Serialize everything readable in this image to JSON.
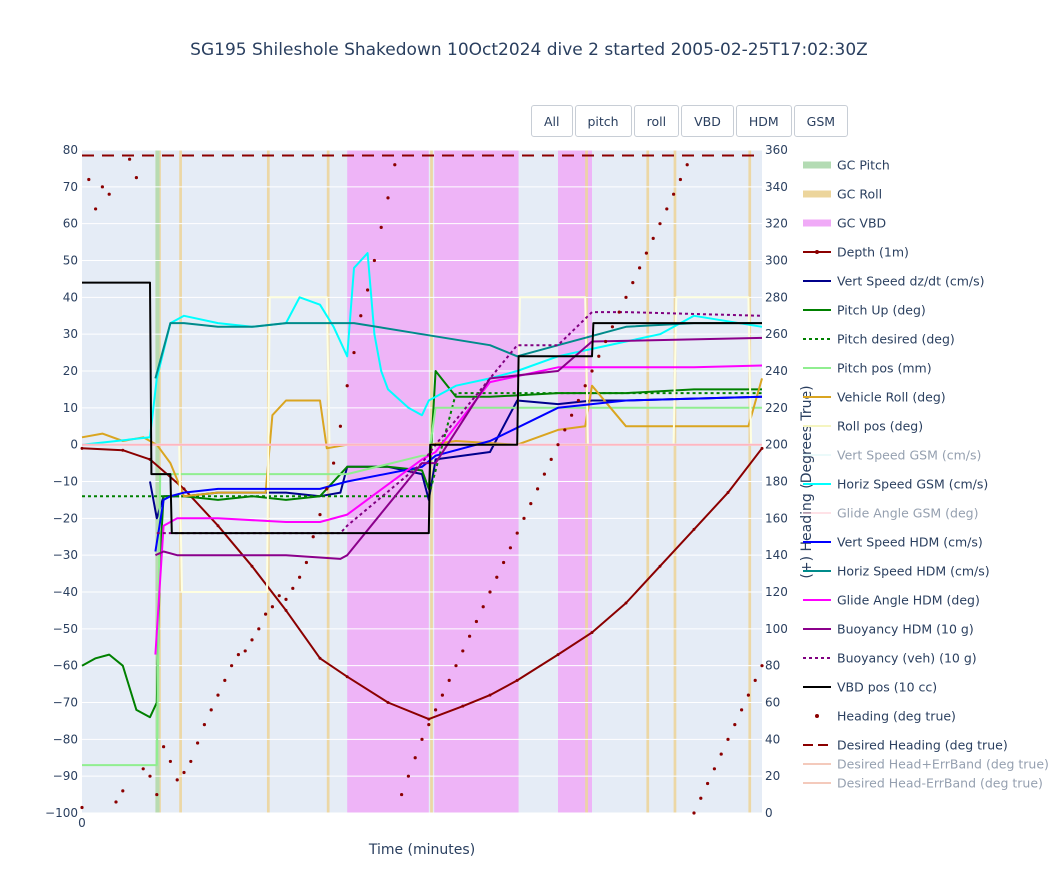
{
  "chart_data": {
    "type": "line",
    "title": "SG195 Shileshole Shakedown 10Oct2024 dive 2 started 2005-02-25T17:02:30Z",
    "xlabel": "Time (minutes)",
    "ylabel": "",
    "y2label": "(+) Heading (Degrees True)",
    "xlim": [
      0,
      1
    ],
    "ylim": [
      -100,
      80
    ],
    "y2lim": [
      0,
      360
    ],
    "x_ticks": [
      "0"
    ],
    "y_ticks": [
      "80",
      "70",
      "60",
      "50",
      "40",
      "30",
      "20",
      "10",
      "0",
      "−10",
      "−20",
      "−30",
      "−40",
      "−50",
      "−60",
      "−70",
      "−80",
      "−90",
      "−100"
    ],
    "y2_ticks": [
      "360",
      "340",
      "320",
      "300",
      "280",
      "260",
      "240",
      "220",
      "200",
      "180",
      "160",
      "140",
      "120",
      "100",
      "80",
      "60",
      "40",
      "20",
      "0"
    ],
    "grid": true,
    "legend_position": "right",
    "bands": {
      "gc_pitch": [
        [
          0.108,
          0.114
        ]
      ],
      "gc_roll": [
        [
          0.108,
          0.116
        ],
        [
          0.143,
          0.147
        ],
        [
          0.272,
          0.276
        ],
        [
          0.36,
          0.364
        ],
        [
          0.512,
          0.516
        ],
        [
          0.74,
          0.744
        ],
        [
          0.83,
          0.834
        ],
        [
          0.87,
          0.874
        ],
        [
          0.98,
          0.984
        ]
      ],
      "gc_vbd": [
        [
          0.39,
          0.51
        ],
        [
          0.518,
          0.642
        ],
        [
          0.7,
          0.75
        ]
      ]
    },
    "series": [
      {
        "name": "Depth (1m)",
        "color": "#8b0000",
        "axis": "y",
        "x": [
          0,
          0.06,
          0.1,
          0.15,
          0.2,
          0.25,
          0.3,
          0.35,
          0.39,
          0.45,
          0.51,
          0.56,
          0.6,
          0.64,
          0.7,
          0.75,
          0.8,
          0.85,
          0.9,
          0.95,
          1.0
        ],
        "values": [
          -1,
          -1.5,
          -4,
          -12,
          -22,
          -33,
          -45,
          -58,
          -63,
          -70,
          -74.5,
          -71,
          -68,
          -64,
          -57,
          -51,
          -43,
          -33,
          -23,
          -13,
          -1
        ]
      },
      {
        "name": "Vert Speed dz/dt (cm/s)",
        "color": "#00008b",
        "axis": "y",
        "x": [
          0.1,
          0.11,
          0.12,
          0.15,
          0.2,
          0.25,
          0.3,
          0.35,
          0.38,
          0.39,
          0.45,
          0.5,
          0.51,
          0.52,
          0.6,
          0.64,
          0.7,
          0.75,
          0.8,
          0.9,
          1.0
        ],
        "values": [
          -10,
          -20,
          -14,
          -14,
          -13,
          -13,
          -13,
          -14,
          -13,
          -6,
          -6,
          -8,
          -15,
          -4,
          -2,
          12,
          11,
          12,
          12,
          12.5,
          13
        ]
      },
      {
        "name": "Pitch Up (deg)",
        "color": "#008000",
        "axis": "y",
        "x": [
          0,
          0.02,
          0.04,
          0.06,
          0.08,
          0.1,
          0.11,
          0.115,
          0.12,
          0.15,
          0.2,
          0.25,
          0.3,
          0.35,
          0.39,
          0.45,
          0.5,
          0.51,
          0.52,
          0.55,
          0.6,
          0.7,
          0.8,
          0.9,
          1.0
        ],
        "values": [
          -60,
          -58,
          -57,
          -60,
          -72,
          -74,
          -70,
          -30,
          -14,
          -14,
          -15,
          -14,
          -15,
          -14,
          -6,
          -6,
          -7,
          -12,
          20,
          13,
          13,
          14,
          14,
          15,
          15
        ]
      },
      {
        "name": "Pitch desired (deg)",
        "color": "#008000",
        "dash": "3,3",
        "axis": "y",
        "x": [
          0,
          0.5,
          0.51,
          0.55,
          0.64,
          0.66,
          1.0
        ],
        "values": [
          -14,
          -14,
          -14,
          14,
          14,
          14,
          14
        ]
      },
      {
        "name": "Pitch pos (mm)",
        "color": "#90ee90",
        "axis": "y",
        "x": [
          0,
          0.11,
          0.115,
          0.14,
          0.39,
          0.5,
          0.51,
          0.52,
          0.64,
          0.66,
          1.0
        ],
        "values": [
          -87,
          -87,
          -8,
          -8,
          -8,
          -3,
          -3,
          10,
          10,
          10,
          10
        ]
      },
      {
        "name": "Vehicle Roll (deg)",
        "color": "#daa520",
        "axis": "y",
        "x": [
          0,
          0.03,
          0.06,
          0.09,
          0.11,
          0.13,
          0.15,
          0.2,
          0.27,
          0.28,
          0.3,
          0.35,
          0.36,
          0.39,
          0.45,
          0.51,
          0.55,
          0.64,
          0.7,
          0.74,
          0.75,
          0.8,
          0.86,
          0.88,
          0.98,
          1.0
        ],
        "values": [
          2,
          3,
          1,
          2,
          0,
          -5,
          -14,
          -13,
          -13,
          8,
          12,
          12,
          -1,
          0,
          0,
          0,
          1,
          0,
          4,
          5,
          16,
          5,
          5,
          5,
          5,
          18
        ]
      },
      {
        "name": "Roll pos (deg)",
        "color": "#ffffe0",
        "axis": "y",
        "x": [
          0,
          0.143,
          0.147,
          0.272,
          0.276,
          0.36,
          0.364,
          0.512,
          0.516,
          0.64,
          0.644,
          0.7,
          0.74,
          0.744,
          0.87,
          0.874,
          0.98,
          0.984,
          1.0
        ],
        "values": [
          0,
          0,
          -40,
          -40,
          40,
          40,
          0,
          0,
          0,
          0,
          40,
          40,
          40,
          0,
          0,
          40,
          40,
          0,
          0
        ]
      },
      {
        "name": "Horiz Speed GSM (cm/s)",
        "color": "#00ffff",
        "axis": "y",
        "x": [
          0,
          0.1,
          0.11,
          0.13,
          0.15,
          0.2,
          0.25,
          0.3,
          0.32,
          0.35,
          0.37,
          0.39,
          0.4,
          0.42,
          0.43,
          0.44,
          0.45,
          0.48,
          0.5,
          0.51,
          0.55,
          0.6,
          0.64,
          0.7,
          0.75,
          0.8,
          0.85,
          0.9,
          1.0
        ],
        "values": [
          0,
          2,
          18,
          33,
          35,
          33,
          32,
          33,
          40,
          38,
          32,
          24,
          48,
          52,
          30,
          20,
          15,
          10,
          8,
          12,
          16,
          18,
          20,
          24,
          26,
          28,
          30,
          35,
          32
        ]
      },
      {
        "name": "Vert Speed GSM (cm/s)",
        "color": "#e0ffff",
        "axis": "y",
        "x": [
          0,
          1
        ],
        "values": [
          0,
          0
        ]
      },
      {
        "name": "Glide Angle GSM (deg)",
        "color": "#ffb6c1",
        "axis": "y",
        "x": [
          0,
          1
        ],
        "values": [
          0,
          0
        ]
      },
      {
        "name": "Vert Speed HDM (cm/s)",
        "color": "#0000ff",
        "axis": "y",
        "x": [
          0.108,
          0.12,
          0.13,
          0.15,
          0.2,
          0.35,
          0.39,
          0.5,
          0.52,
          0.6,
          0.7,
          0.75,
          0.8,
          1.0
        ],
        "values": [
          -29,
          -15,
          -14,
          -13,
          -12,
          -12,
          -10,
          -6,
          -3,
          1,
          10,
          11,
          12,
          13
        ]
      },
      {
        "name": "Horiz Speed HDM (cm/s)",
        "color": "#008b8b",
        "axis": "y",
        "x": [
          0.108,
          0.13,
          0.15,
          0.2,
          0.25,
          0.3,
          0.35,
          0.4,
          0.5,
          0.6,
          0.64,
          0.7,
          0.8,
          0.9,
          1.0
        ],
        "values": [
          18,
          33,
          33,
          32,
          32,
          33,
          33,
          33,
          30,
          27,
          24,
          27,
          32,
          33,
          33
        ]
      },
      {
        "name": "Glide Angle HDM (deg)",
        "color": "#ff00ff",
        "axis": "y",
        "x": [
          0.108,
          0.12,
          0.14,
          0.2,
          0.3,
          0.35,
          0.39,
          0.5,
          0.52,
          0.6,
          0.7,
          0.8,
          0.9,
          1.0
        ],
        "values": [
          -57,
          -22,
          -20,
          -20,
          -21,
          -21,
          -19,
          -4,
          -2,
          17,
          21,
          21,
          21,
          21.5
        ]
      },
      {
        "name": "Buoyancy HDM (10 g)",
        "color": "#8b008b",
        "axis": "y",
        "x": [
          0.108,
          0.12,
          0.14,
          0.2,
          0.3,
          0.38,
          0.39,
          0.5,
          0.52,
          0.6,
          0.7,
          0.75,
          1.0
        ],
        "values": [
          -30,
          -29,
          -30,
          -30,
          -30,
          -31,
          -30,
          -5,
          -5,
          18,
          20,
          28,
          29
        ]
      },
      {
        "name": "Buoyancy (veh) (10 g)",
        "color": "#800080",
        "dash": "3,3",
        "axis": "y",
        "x": [
          0.11,
          0.13,
          0.2,
          0.3,
          0.38,
          0.39,
          0.5,
          0.52,
          0.64,
          0.7,
          0.75,
          0.8,
          1.0
        ],
        "values": [
          -24,
          -24,
          -24,
          -24,
          -24,
          -22,
          -5,
          0,
          27,
          27,
          36,
          36,
          35
        ]
      },
      {
        "name": "VBD pos (10 cc)",
        "color": "#000000",
        "axis": "y",
        "x": [
          0,
          0.1,
          0.102,
          0.13,
          0.132,
          0.51,
          0.512,
          0.64,
          0.642,
          0.75,
          0.752,
          1.0
        ],
        "values": [
          44,
          44,
          -8,
          -8,
          -24,
          -24,
          0,
          0,
          24,
          24,
          33,
          33
        ]
      },
      {
        "name": "Heading (deg true)",
        "color": "#8b0000",
        "marker": "dot",
        "axis": "y2",
        "x": [
          0,
          0.01,
          0.02,
          0.03,
          0.04,
          0.05,
          0.06,
          0.07,
          0.08,
          0.09,
          0.1,
          0.11,
          0.12,
          0.13,
          0.14,
          0.15,
          0.16,
          0.17,
          0.18,
          0.19,
          0.2,
          0.21,
          0.22,
          0.23,
          0.24,
          0.25,
          0.26,
          0.27,
          0.28,
          0.29,
          0.3,
          0.31,
          0.32,
          0.33,
          0.34,
          0.35,
          0.36,
          0.37,
          0.38,
          0.39,
          0.4,
          0.41,
          0.42,
          0.43,
          0.44,
          0.45,
          0.46,
          0.47,
          0.48,
          0.49,
          0.5,
          0.51,
          0.52,
          0.53,
          0.54,
          0.55,
          0.56,
          0.57,
          0.58,
          0.59,
          0.6,
          0.61,
          0.62,
          0.63,
          0.64,
          0.65,
          0.66,
          0.67,
          0.68,
          0.69,
          0.7,
          0.71,
          0.72,
          0.73,
          0.74,
          0.75,
          0.76,
          0.77,
          0.78,
          0.79,
          0.8,
          0.81,
          0.82,
          0.83,
          0.84,
          0.85,
          0.86,
          0.87,
          0.88,
          0.89,
          0.9,
          0.91,
          0.92,
          0.93,
          0.94,
          0.95,
          0.96,
          0.97,
          0.98,
          0.99,
          1.0
        ],
        "values": [
          3,
          344,
          328,
          340,
          336,
          6,
          12,
          355,
          345,
          24,
          20,
          10,
          36,
          28,
          18,
          22,
          28,
          38,
          48,
          56,
          64,
          72,
          80,
          86,
          88,
          94,
          100,
          108,
          112,
          118,
          116,
          122,
          128,
          136,
          150,
          162,
          176,
          190,
          210,
          232,
          250,
          270,
          284,
          300,
          318,
          334,
          352,
          10,
          20,
          30,
          40,
          48,
          56,
          64,
          72,
          80,
          88,
          96,
          104,
          112,
          120,
          128,
          136,
          144,
          152,
          160,
          168,
          176,
          184,
          192,
          200,
          208,
          216,
          224,
          232,
          240,
          248,
          256,
          264,
          272,
          280,
          288,
          296,
          304,
          312,
          320,
          328,
          336,
          344,
          352,
          0,
          8,
          16,
          24,
          32,
          40,
          48,
          56,
          64,
          72,
          80
        ]
      },
      {
        "name": "Desired Heading (deg true)",
        "color": "#8b0000",
        "dash": "12,8",
        "axis": "y2",
        "x": [
          0,
          1
        ],
        "values": [
          357,
          357
        ]
      },
      {
        "name": "Desired Head+ErrBand (deg true)",
        "color": "#e9967a",
        "axis": "y2",
        "x": [],
        "values": []
      },
      {
        "name": "Desired Head-ErrBand (deg true)",
        "color": "#e9967a",
        "axis": "y2",
        "x": [],
        "values": []
      }
    ]
  },
  "buttons": {
    "all": "All",
    "pitch": "pitch",
    "roll": "roll",
    "vbd": "VBD",
    "hdm": "HDM",
    "gsm": "GSM"
  },
  "legend": [
    {
      "name": "GC Pitch",
      "color": "#b3dbb3",
      "kind": "band"
    },
    {
      "name": "GC Roll",
      "color": "#ecd59c",
      "kind": "band"
    },
    {
      "name": "GC VBD",
      "color": "#f0aaf7",
      "kind": "band"
    },
    {
      "name": "Depth (1m)",
      "color": "#8b0000",
      "kind": "line-dot"
    },
    {
      "name": "Vert Speed dz/dt (cm/s)",
      "color": "#00008b",
      "kind": "line"
    },
    {
      "name": "Pitch Up (deg)",
      "color": "#008000",
      "kind": "line"
    },
    {
      "name": "Pitch desired (deg)",
      "color": "#008000",
      "kind": "dot-line"
    },
    {
      "name": "Pitch pos (mm)",
      "color": "#90ee90",
      "kind": "line"
    },
    {
      "name": "Vehicle Roll (deg)",
      "color": "#daa520",
      "kind": "line"
    },
    {
      "name": "Roll pos (deg)",
      "color": "#f5f5c0",
      "kind": "line"
    },
    {
      "name": "Vert Speed GSM (cm/s)",
      "color": "#d7f5f5",
      "kind": "line",
      "faded": true
    },
    {
      "name": "Horiz Speed GSM (cm/s)",
      "color": "#00ffff",
      "kind": "line"
    },
    {
      "name": "Glide Angle GSM (deg)",
      "color": "#ffc6d0",
      "kind": "line",
      "faded": true
    },
    {
      "name": "Vert Speed HDM (cm/s)",
      "color": "#0000ff",
      "kind": "line"
    },
    {
      "name": "Horiz Speed HDM (cm/s)",
      "color": "#008b8b",
      "kind": "line"
    },
    {
      "name": "Glide Angle HDM (deg)",
      "color": "#ff00ff",
      "kind": "line"
    },
    {
      "name": "Buoyancy HDM (10 g)",
      "color": "#8b008b",
      "kind": "line"
    },
    {
      "name": "Buoyancy (veh) (10 g)",
      "color": "#800080",
      "kind": "dot-line"
    },
    {
      "name": "VBD pos (10 cc)",
      "color": "#000000",
      "kind": "line"
    },
    {
      "name": "Heading (deg true)",
      "color": "#8b0000",
      "kind": "marker"
    },
    {
      "name": "Desired Heading (deg true)",
      "color": "#8b0000",
      "kind": "dash"
    },
    {
      "name": "Desired Head+ErrBand (deg true)",
      "color": "#e9967a",
      "kind": "line",
      "faded": true
    },
    {
      "name": "Desired Head-ErrBand (deg true)",
      "color": "#e9967a",
      "kind": "line",
      "faded": true
    }
  ]
}
